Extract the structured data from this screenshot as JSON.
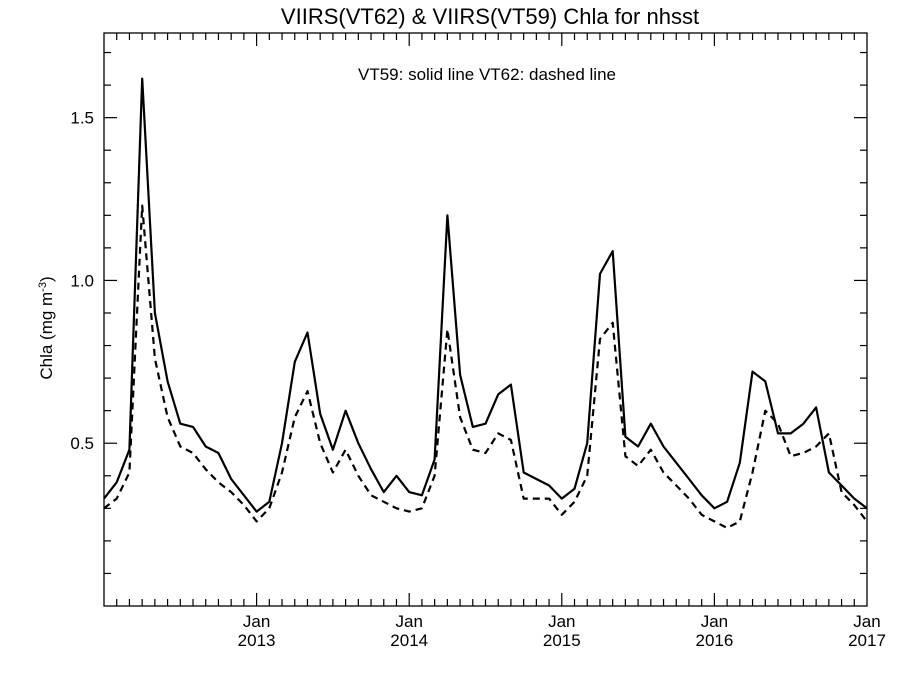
{
  "chart_data": {
    "type": "line",
    "title": "VIIRS(VT62) & VIIRS(VT59)  Chla for nhsst",
    "annotation": "VT59: solid line   VT62: dashed line",
    "ylabel_main": "Chla (mg m",
    "ylabel_sup": "-3",
    "ylabel_close": ")",
    "ylim": [
      0.0,
      1.76
    ],
    "yticks": [
      {
        "value": 0.5,
        "label": "0.5"
      },
      {
        "value": 1.0,
        "label": "1.0"
      },
      {
        "value": 1.5,
        "label": "1.5"
      }
    ],
    "x_range": [
      "2012-01",
      "2017-01"
    ],
    "xticks": [
      {
        "month": "2013-01",
        "label": "Jan",
        "year": "2013"
      },
      {
        "month": "2014-01",
        "label": "Jan",
        "year": "2014"
      },
      {
        "month": "2015-01",
        "label": "Jan",
        "year": "2015"
      },
      {
        "month": "2016-01",
        "label": "Jan",
        "year": "2016"
      },
      {
        "month": "2017-01",
        "label": "Jan",
        "year": "2017"
      }
    ],
    "x": [
      "2012-01",
      "2012-02",
      "2012-03",
      "2012-04",
      "2012-05",
      "2012-06",
      "2012-07",
      "2012-08",
      "2012-09",
      "2012-10",
      "2012-11",
      "2012-12",
      "2013-01",
      "2013-02",
      "2013-03",
      "2013-04",
      "2013-05",
      "2013-06",
      "2013-07",
      "2013-08",
      "2013-09",
      "2013-10",
      "2013-11",
      "2013-12",
      "2014-01",
      "2014-02",
      "2014-03",
      "2014-04",
      "2014-05",
      "2014-06",
      "2014-07",
      "2014-08",
      "2014-09",
      "2014-10",
      "2014-11",
      "2014-12",
      "2015-01",
      "2015-02",
      "2015-03",
      "2015-04",
      "2015-05",
      "2015-06",
      "2015-07",
      "2015-08",
      "2015-09",
      "2015-10",
      "2015-11",
      "2015-12",
      "2016-01",
      "2016-02",
      "2016-03",
      "2016-04",
      "2016-05",
      "2016-06",
      "2016-07",
      "2016-08",
      "2016-09",
      "2016-10",
      "2016-11",
      "2016-12",
      "2017-01"
    ],
    "series": [
      {
        "name": "VT59",
        "style": "solid",
        "values": [
          0.33,
          0.38,
          0.48,
          1.62,
          0.9,
          0.69,
          0.56,
          0.55,
          0.49,
          0.47,
          0.39,
          0.34,
          0.29,
          0.32,
          0.5,
          0.75,
          0.84,
          0.59,
          0.48,
          0.6,
          0.5,
          0.42,
          0.35,
          0.4,
          0.35,
          0.34,
          0.45,
          1.2,
          0.71,
          0.55,
          0.56,
          0.65,
          0.68,
          0.41,
          0.39,
          0.37,
          0.33,
          0.36,
          0.5,
          1.02,
          1.09,
          0.52,
          0.49,
          0.56,
          0.49,
          0.44,
          0.39,
          0.34,
          0.3,
          0.32,
          0.44,
          0.72,
          0.69,
          0.53,
          0.53,
          0.56,
          0.61,
          0.41,
          0.37,
          0.33,
          0.3
        ]
      },
      {
        "name": "VT62",
        "style": "dashed",
        "values": [
          0.3,
          0.33,
          0.41,
          1.23,
          0.76,
          0.58,
          0.49,
          0.47,
          0.42,
          0.38,
          0.35,
          0.31,
          0.26,
          0.3,
          0.41,
          0.58,
          0.66,
          0.5,
          0.41,
          0.48,
          0.4,
          0.34,
          0.32,
          0.3,
          0.29,
          0.3,
          0.4,
          0.85,
          0.58,
          0.48,
          0.47,
          0.53,
          0.51,
          0.33,
          0.33,
          0.33,
          0.28,
          0.32,
          0.4,
          0.82,
          0.87,
          0.46,
          0.43,
          0.48,
          0.41,
          0.37,
          0.33,
          0.28,
          0.26,
          0.24,
          0.26,
          0.41,
          0.6,
          0.56,
          0.46,
          0.47,
          0.49,
          0.53,
          0.35,
          0.31,
          0.26
        ]
      }
    ]
  }
}
